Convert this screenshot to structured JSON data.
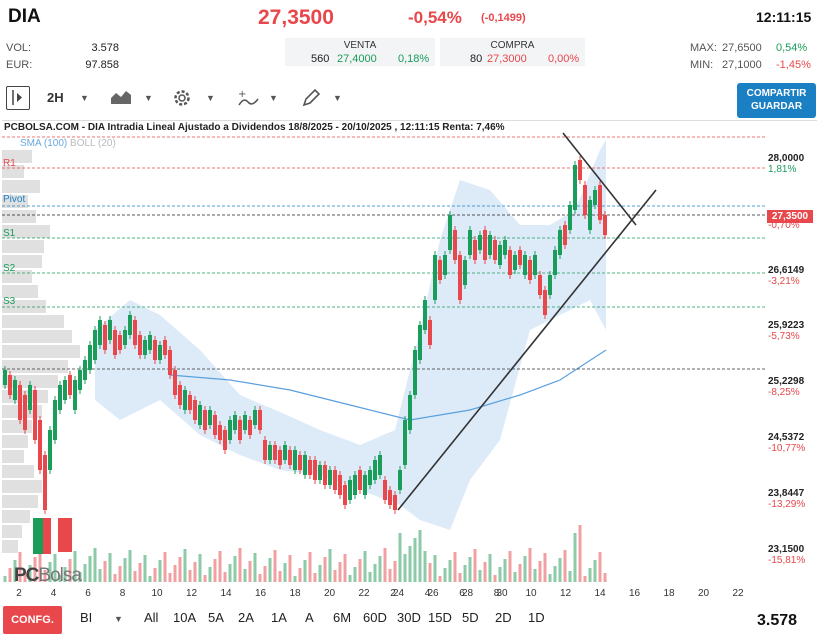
{
  "header": {
    "symbol": "DIA",
    "price": "27,3500",
    "change_pct": "-0,54%",
    "change_abs": "(-0,1499)",
    "time": "12:11:15",
    "volume_label": "VOL:",
    "volume": "3.578",
    "eur_label": "EUR:",
    "eur": "97.858",
    "sell": {
      "title": "VENTA",
      "qty": "560",
      "price": "27,4000",
      "pct": "0,18%"
    },
    "buy": {
      "title": "COMPRA",
      "qty": "80",
      "price": "27,3000",
      "pct": "0,00%"
    },
    "max_label": "MAX:",
    "max": "27,6500",
    "max_pct": "0,54%",
    "min_label": "MIN:",
    "min": "27,1000",
    "min_pct": "-1,45%"
  },
  "toolbar": {
    "timeframe": "2H",
    "save_label_1": "COMPARTIR",
    "save_label_2": "GUARDAR"
  },
  "chart": {
    "title": "PCBOLSA.COM - DIA Intradia Lineal Ajustado a Dividendos 18/8/2025 - 20/10/2025 , 12:11:15 Renta: 7,46%",
    "indicator_sma": "SMA (100)",
    "indicator_boll": "BOLL (20)",
    "levels": {
      "r1": "R1",
      "pivot": "Pivot",
      "s1": "S1",
      "s2": "S2",
      "s3": "S3"
    },
    "price_tag": "27,3500",
    "watermark_a": "PC",
    "watermark_b": "Bolsa",
    "colors": {
      "up": "#1a9c5b",
      "down": "#e8474b",
      "band": "#cfe3f6",
      "accent": "#1b7fc4"
    }
  },
  "chart_data": {
    "type": "candlestick",
    "y_ticks": [
      {
        "price": "28,0000",
        "pct": "1,81%"
      },
      {
        "price": "-0,70%"
      },
      {
        "price": "26,6149",
        "pct": "-3,21%"
      },
      {
        "price": "25,9223",
        "pct": "-5,73%"
      },
      {
        "price": "25,2298",
        "pct": "-8,25%"
      },
      {
        "price": "24,5372",
        "pct": "-10,77%"
      },
      {
        "price": "23,8447",
        "pct": "-13,29%"
      },
      {
        "price": "23,1500",
        "pct": "-15,81%"
      }
    ],
    "x_ticks": [
      "2",
      "4",
      "6",
      "8",
      "10",
      "12",
      "14",
      "16",
      "18",
      "20",
      "22",
      "24",
      "26",
      "28",
      "30",
      "2",
      "4",
      "6",
      "8",
      "10",
      "12",
      "14",
      "16",
      "18",
      "20",
      "22",
      "24",
      "26",
      "28",
      "30"
    ],
    "ylim": [
      23.15,
      28.2
    ]
  },
  "periods": {
    "conf": "CONFG.",
    "bi": "BI",
    "items": [
      "All",
      "10A",
      "5A",
      "2A",
      "1A",
      "A",
      "6M",
      "60D",
      "30D",
      "15D",
      "5D",
      "2D",
      "1D"
    ],
    "volume": "3.578"
  }
}
